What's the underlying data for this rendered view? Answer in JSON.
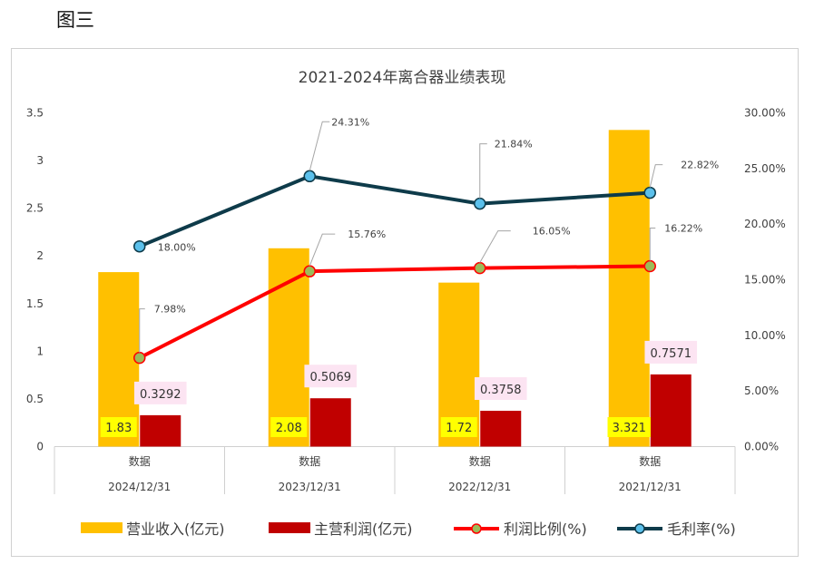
{
  "figure_label": "图三",
  "chart_data": {
    "type": "bar",
    "title": "2021-2024年离合器业绩表现",
    "categories": [
      {
        "name": "数据",
        "date": "2024/12/31"
      },
      {
        "name": "数据",
        "date": "2023/12/31"
      },
      {
        "name": "数据",
        "date": "2022/12/31"
      },
      {
        "name": "数据",
        "date": "2021/12/31"
      }
    ],
    "left_axis": {
      "ylim": [
        0,
        3.5
      ],
      "ticks": [
        {
          "value": 0,
          "label": "0"
        },
        {
          "value": 0.5,
          "label": "0.5"
        },
        {
          "value": 1,
          "label": "1"
        },
        {
          "value": 1.5,
          "label": "1.5"
        },
        {
          "value": 2,
          "label": "2"
        },
        {
          "value": 2.5,
          "label": "2.5"
        },
        {
          "value": 3,
          "label": "3"
        },
        {
          "value": 3.5,
          "label": "3.5"
        }
      ]
    },
    "right_axis": {
      "ylim": [
        0,
        30
      ],
      "ticks": [
        {
          "value": 0,
          "label": "0.00%"
        },
        {
          "value": 5,
          "label": "5.00%"
        },
        {
          "value": 10,
          "label": "10.00%"
        },
        {
          "value": 15,
          "label": "15.00%"
        },
        {
          "value": 20,
          "label": "20.00%"
        },
        {
          "value": 25,
          "label": "25.00%"
        },
        {
          "value": 30,
          "label": "30.00%"
        }
      ]
    },
    "series": [
      {
        "name": "营业收入(亿元)",
        "kind": "bar",
        "axis": "left",
        "color": "#FFC000",
        "values": [
          1.83,
          2.08,
          1.72,
          3.321
        ],
        "labels": [
          "1.83",
          "2.08",
          "1.72",
          "3.321"
        ],
        "label_bg": "#FFFF00"
      },
      {
        "name": "主营利润(亿元)",
        "kind": "bar",
        "axis": "left",
        "color": "#C00000",
        "values": [
          0.3292,
          0.5069,
          0.3758,
          0.7571
        ],
        "labels": [
          "0.3292",
          "0.5069",
          "0.3758",
          "0.7571"
        ],
        "label_bg": "#FCE4F2"
      },
      {
        "name": "利润比例(%)",
        "kind": "line",
        "axis": "right",
        "color": "#FF0000",
        "marker_color": "#9BBB59",
        "values": [
          7.98,
          15.76,
          16.05,
          16.22
        ],
        "labels": [
          "7.98%",
          "15.76%",
          "16.05%",
          "16.22%"
        ]
      },
      {
        "name": "毛利率(%)",
        "kind": "line",
        "axis": "right",
        "color": "#0E3B4A",
        "marker_color": "#5BC0EB",
        "values": [
          18.0,
          24.31,
          21.84,
          22.82
        ],
        "labels": [
          "18.00%",
          "24.31%",
          "21.84%",
          "22.82%"
        ]
      }
    ],
    "legend": "bottom",
    "grid": false
  }
}
